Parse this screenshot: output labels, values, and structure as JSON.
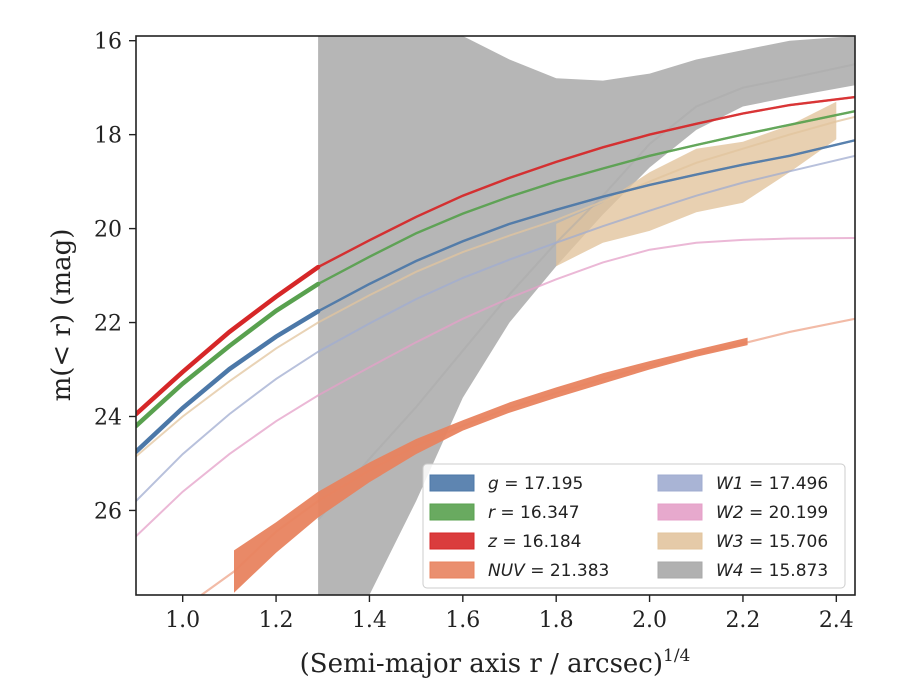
{
  "chart_data": {
    "type": "line",
    "xlabel": "(Semi-major axis r / arcsec)",
    "xlabel_sup": "1/4",
    "ylabel": "m(< r) (mag)",
    "xlim": [
      0.9,
      2.44
    ],
    "ylim": [
      27.8,
      15.9
    ],
    "y_inverted": true,
    "grid": false,
    "legend_placement": "lower-right",
    "xticks": [
      1.0,
      1.2,
      1.4,
      1.6,
      1.8,
      2.0,
      2.2,
      2.4
    ],
    "xtick_labels": [
      "1.0",
      "1.2",
      "1.4",
      "1.6",
      "1.8",
      "2.0",
      "2.2",
      "2.4"
    ],
    "yticks": [
      16,
      18,
      20,
      22,
      24,
      26
    ],
    "ytick_labels": [
      "16",
      "18",
      "20",
      "22",
      "24",
      "26"
    ],
    "series": [
      {
        "name": "g = 17.195",
        "band": "g",
        "total": "17.195",
        "color": "#4c78a8",
        "x": [
          0.9,
          1.0,
          1.1,
          1.2,
          1.29,
          1.4,
          1.5,
          1.6,
          1.7,
          1.8,
          1.9,
          2.0,
          2.1,
          2.2,
          2.3,
          2.44
        ],
        "y": [
          24.75,
          23.82,
          22.99,
          22.3,
          21.76,
          21.18,
          20.69,
          20.27,
          19.9,
          19.6,
          19.32,
          19.07,
          18.85,
          18.64,
          18.45,
          18.12
        ],
        "band_halfwidth": [
          0.1,
          0.08,
          0.06,
          0.05,
          0.0
        ]
      },
      {
        "name": "r = 16.347",
        "band": "r",
        "total": "16.347",
        "color": "#59a14f",
        "x": [
          0.9,
          1.0,
          1.1,
          1.2,
          1.29,
          1.4,
          1.5,
          1.6,
          1.7,
          1.8,
          1.9,
          2.0,
          2.1,
          2.2,
          2.3,
          2.44
        ],
        "y": [
          24.2,
          23.3,
          22.5,
          21.75,
          21.18,
          20.6,
          20.1,
          19.68,
          19.32,
          19.0,
          18.72,
          18.45,
          18.22,
          18.0,
          17.79,
          17.5
        ],
        "band_halfwidth": [
          0.1,
          0.08,
          0.06,
          0.05,
          0.0
        ]
      },
      {
        "name": "z = 16.184",
        "band": "z",
        "total": "16.184",
        "color": "#d62728",
        "x": [
          0.9,
          1.0,
          1.1,
          1.2,
          1.29,
          1.4,
          1.5,
          1.6,
          1.7,
          1.8,
          1.9,
          2.0,
          2.1,
          2.2,
          2.3,
          2.44
        ],
        "y": [
          23.95,
          23.05,
          22.2,
          21.45,
          20.82,
          20.25,
          19.75,
          19.3,
          18.92,
          18.58,
          18.27,
          18.0,
          17.77,
          17.55,
          17.37,
          17.2
        ],
        "band_halfwidth": [
          0.1,
          0.08,
          0.06,
          0.05,
          0.0
        ]
      },
      {
        "name": "NUV = 21.383",
        "band": "NUV",
        "total": "21.383",
        "color": "#e8835f",
        "x": [
          1.04,
          1.11,
          1.2,
          1.29,
          1.4,
          1.5,
          1.6,
          1.7,
          1.8,
          1.9,
          2.0,
          2.1,
          2.21,
          2.3,
          2.44
        ],
        "y": [
          27.8,
          27.3,
          26.45,
          25.8,
          25.15,
          24.62,
          24.2,
          23.82,
          23.5,
          23.2,
          22.92,
          22.67,
          22.42,
          22.2,
          21.92
        ],
        "upper": [
          null,
          27.75,
          26.9,
          26.15,
          25.4,
          24.8,
          24.3,
          23.92,
          23.6,
          23.3,
          23.0,
          22.73,
          22.48,
          null,
          null
        ],
        "lower": [
          null,
          26.85,
          26.25,
          25.6,
          24.98,
          24.48,
          24.08,
          23.7,
          23.38,
          23.08,
          22.82,
          22.58,
          22.32,
          null,
          null
        ]
      },
      {
        "name": "W1 = 17.496",
        "band": "W1",
        "total": "17.496",
        "color": "#a0acd0",
        "x": [
          0.9,
          1.0,
          1.1,
          1.2,
          1.29,
          1.4,
          1.5,
          1.6,
          1.7,
          1.8,
          1.9,
          2.0,
          2.1,
          2.2,
          2.3,
          2.44
        ],
        "y": [
          25.8,
          24.8,
          23.95,
          23.2,
          22.62,
          22.02,
          21.5,
          21.05,
          20.66,
          20.3,
          19.95,
          19.62,
          19.3,
          19.02,
          18.78,
          18.45
        ]
      },
      {
        "name": "W2 = 20.199",
        "band": "W2",
        "total": "20.199",
        "color": "#e4a0c8",
        "x": [
          0.9,
          1.0,
          1.1,
          1.2,
          1.29,
          1.4,
          1.5,
          1.6,
          1.7,
          1.8,
          1.9,
          2.0,
          2.1,
          2.2,
          2.3,
          2.44
        ],
        "y": [
          26.55,
          25.6,
          24.8,
          24.1,
          23.55,
          22.95,
          22.42,
          21.92,
          21.48,
          21.08,
          20.72,
          20.45,
          20.3,
          20.24,
          20.21,
          20.2
        ]
      },
      {
        "name": "W3 = 15.706",
        "band": "W3",
        "total": "15.706",
        "color": "#e2c49e",
        "x": [
          0.9,
          1.0,
          1.1,
          1.2,
          1.29,
          1.4,
          1.5,
          1.6,
          1.7,
          1.8,
          1.9,
          2.0,
          2.1,
          2.2,
          2.3,
          2.4,
          2.44
        ],
        "y": [
          24.85,
          24.0,
          23.25,
          22.55,
          22.0,
          21.42,
          20.92,
          20.5,
          20.15,
          19.82,
          19.42,
          19.0,
          18.6,
          18.3,
          18.0,
          17.72,
          17.62
        ],
        "band_x": [
          1.8,
          1.9,
          2.0,
          2.1,
          2.2,
          2.3,
          2.4
        ],
        "band_upper": [
          20.8,
          20.3,
          20.05,
          19.65,
          19.45,
          18.8,
          18.1
        ],
        "band_lower": [
          19.9,
          19.45,
          18.8,
          18.3,
          18.15,
          17.8,
          17.3
        ]
      },
      {
        "name": "W4 = 15.873",
        "band": "W4",
        "total": "15.873",
        "color": "#a9a9a9",
        "x": [
          1.29,
          1.4,
          1.5,
          1.6,
          1.7,
          1.8,
          1.9,
          2.0,
          2.1,
          2.2,
          2.3,
          2.44
        ],
        "y": [
          26.2,
          24.9,
          23.8,
          22.6,
          21.4,
          20.3,
          19.3,
          18.2,
          17.4,
          17.0,
          16.8,
          16.5
        ],
        "band_x": [
          1.29,
          1.29,
          1.4,
          1.5,
          1.6,
          1.7,
          1.8,
          1.9,
          2.0,
          2.1,
          2.2,
          2.3,
          2.44
        ],
        "band_upper": [
          27.8,
          27.8,
          27.8,
          25.8,
          23.6,
          22.0,
          20.8,
          19.7,
          18.7,
          17.9,
          17.4,
          17.2,
          16.95
        ],
        "band_lower": [
          19.5,
          15.9,
          15.9,
          15.9,
          15.9,
          16.4,
          16.8,
          16.85,
          16.7,
          16.4,
          16.2,
          16.0,
          15.9
        ]
      }
    ]
  }
}
